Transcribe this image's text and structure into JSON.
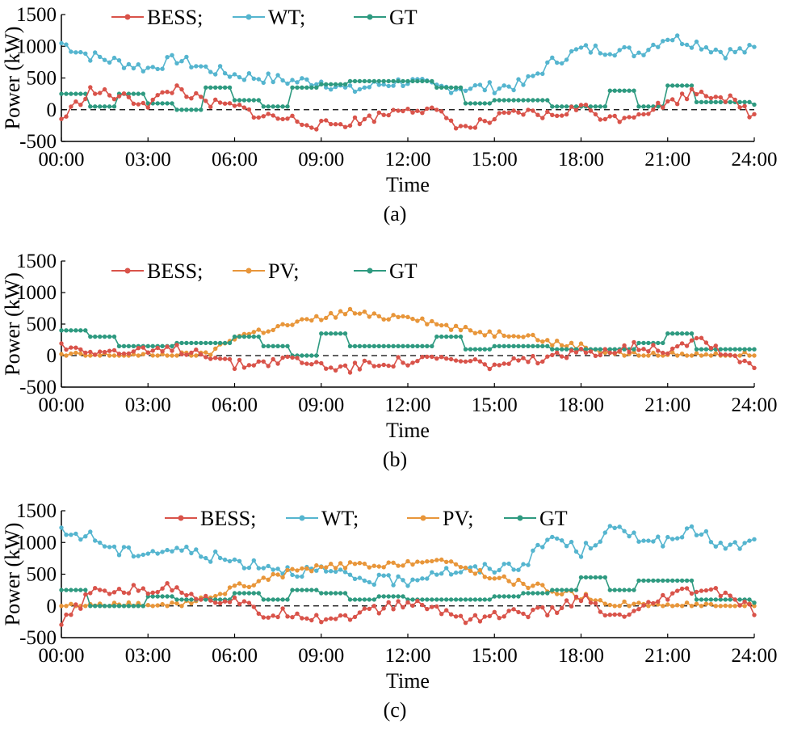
{
  "figure": {
    "panels": [
      {
        "caption": "(a)",
        "xlabel": "Time",
        "ylabel": "Power (kW)"
      },
      {
        "caption": "(b)",
        "xlabel": "Time",
        "ylabel": "Power (kW)"
      },
      {
        "caption": "(c)",
        "xlabel": "Time",
        "ylabel": "Power (kW)"
      }
    ]
  },
  "colors": {
    "BESS": "#d9534a",
    "WT": "#55b5cf",
    "PV": "#e8963a",
    "GT": "#2e9a80",
    "zero_line": "#000000"
  },
  "chart_data": [
    {
      "type": "line",
      "caption": "(a)",
      "xlabel": "Time",
      "ylabel": "Power (kW)",
      "x_ticks": [
        "00:00",
        "03:00",
        "06:00",
        "09:00",
        "12:00",
        "15:00",
        "18:00",
        "21:00",
        "24:00"
      ],
      "y_ticks": [
        "1500",
        "1000",
        "500",
        "0",
        "-500"
      ],
      "xlim_hours": [
        0,
        24
      ],
      "ylim": [
        -500,
        1500
      ],
      "legend_position": "top-left",
      "legend_labels": [
        "BESS;",
        "WT;",
        "GT"
      ],
      "x_hours": [
        0,
        1,
        2,
        3,
        4,
        5,
        6,
        7,
        8,
        9,
        10,
        11,
        12,
        13,
        14,
        15,
        16,
        17,
        18,
        19,
        20,
        21,
        22,
        23,
        24
      ],
      "series": [
        {
          "name": "BESS",
          "values": [
            -150,
            300,
            200,
            100,
            350,
            100,
            50,
            -100,
            -150,
            -250,
            -200,
            -100,
            50,
            -50,
            -300,
            -150,
            -50,
            -100,
            50,
            -150,
            -50,
            100,
            300,
            200,
            -100
          ]
        },
        {
          "name": "WT",
          "values": [
            1050,
            850,
            750,
            650,
            800,
            650,
            550,
            500,
            450,
            450,
            300,
            400,
            450,
            350,
            350,
            350,
            400,
            750,
            950,
            950,
            900,
            1150,
            1050,
            900,
            950
          ]
        },
        {
          "name": "GT",
          "values": [
            250,
            50,
            250,
            100,
            0,
            350,
            150,
            50,
            350,
            400,
            450,
            450,
            450,
            350,
            100,
            150,
            150,
            50,
            50,
            300,
            50,
            380,
            120,
            120,
            80
          ]
        }
      ]
    },
    {
      "type": "line",
      "caption": "(b)",
      "xlabel": "Time",
      "ylabel": "Power (kW)",
      "x_ticks": [
        "00:00",
        "03:00",
        "06:00",
        "09:00",
        "12:00",
        "15:00",
        "18:00",
        "21:00",
        "24:00"
      ],
      "y_ticks": [
        "1500",
        "1000",
        "500",
        "0",
        "-500"
      ],
      "xlim_hours": [
        0,
        24
      ],
      "ylim": [
        -500,
        1500
      ],
      "legend_position": "top-left",
      "legend_labels": [
        "BESS;",
        "PV;",
        "GT"
      ],
      "x_hours": [
        0,
        1,
        2,
        3,
        4,
        5,
        6,
        7,
        8,
        9,
        10,
        11,
        12,
        13,
        14,
        15,
        16,
        17,
        18,
        19,
        20,
        21,
        22,
        23,
        24
      ],
      "series": [
        {
          "name": "BESS",
          "values": [
            150,
            100,
            50,
            50,
            100,
            50,
            -150,
            -100,
            -50,
            -150,
            -200,
            -100,
            -100,
            -50,
            -100,
            -150,
            -100,
            -50,
            50,
            100,
            150,
            100,
            300,
            50,
            -150
          ]
        },
        {
          "name": "PV",
          "values": [
            0,
            0,
            0,
            0,
            0,
            0,
            300,
            400,
            500,
            600,
            700,
            600,
            650,
            500,
            400,
            350,
            350,
            200,
            150,
            50,
            0,
            0,
            0,
            0,
            0
          ]
        },
        {
          "name": "GT",
          "values": [
            400,
            300,
            150,
            150,
            200,
            200,
            300,
            150,
            0,
            350,
            150,
            150,
            150,
            300,
            100,
            150,
            150,
            100,
            100,
            100,
            200,
            350,
            100,
            100,
            100
          ]
        }
      ]
    },
    {
      "type": "line",
      "caption": "(c)",
      "xlabel": "Time",
      "ylabel": "Power (kW)",
      "x_ticks": [
        "00:00",
        "03:00",
        "06:00",
        "09:00",
        "12:00",
        "15:00",
        "18:00",
        "21:00",
        "24:00"
      ],
      "y_ticks": [
        "1500",
        "1000",
        "500",
        "0",
        "-500"
      ],
      "xlim_hours": [
        0,
        24
      ],
      "ylim": [
        -500,
        1500
      ],
      "legend_position": "top-center",
      "legend_labels": [
        "BESS;",
        "WT;",
        "PV;",
        "GT"
      ],
      "x_hours": [
        0,
        1,
        2,
        3,
        4,
        5,
        6,
        7,
        8,
        9,
        10,
        11,
        12,
        13,
        14,
        15,
        16,
        17,
        18,
        19,
        20,
        21,
        22,
        23,
        24
      ],
      "series": [
        {
          "name": "BESS",
          "values": [
            -300,
            200,
            250,
            250,
            300,
            100,
            100,
            -150,
            -100,
            -200,
            -150,
            -50,
            50,
            -50,
            -200,
            -150,
            -100,
            -100,
            150,
            -200,
            -100,
            150,
            250,
            200,
            -100
          ]
        },
        {
          "name": "WT",
          "values": [
            1150,
            1100,
            850,
            850,
            900,
            800,
            700,
            650,
            550,
            550,
            450,
            400,
            400,
            550,
            550,
            600,
            650,
            1100,
            850,
            1200,
            1100,
            1000,
            1200,
            900,
            1000
          ]
        },
        {
          "name": "PV",
          "values": [
            0,
            0,
            0,
            0,
            0,
            100,
            300,
            400,
            550,
            600,
            650,
            600,
            700,
            700,
            600,
            450,
            350,
            250,
            150,
            50,
            0,
            0,
            0,
            0,
            0
          ]
        },
        {
          "name": "GT",
          "values": [
            250,
            0,
            0,
            150,
            100,
            100,
            200,
            100,
            250,
            200,
            100,
            150,
            100,
            100,
            100,
            150,
            200,
            250,
            450,
            250,
            400,
            400,
            100,
            100,
            50
          ]
        }
      ]
    }
  ]
}
